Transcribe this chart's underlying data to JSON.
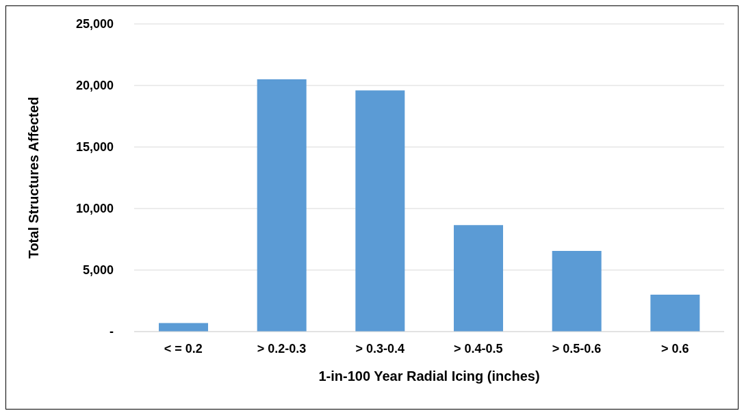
{
  "chart_data": {
    "type": "bar",
    "xlabel": "1-in-100 Year Radial Icing (inches)",
    "ylabel": "Total Structures Affected",
    "categories": [
      "< = 0.2",
      "> 0.2-0.3",
      "> 0.3-0.4",
      "> 0.4-0.5",
      "> 0.5-0.6",
      "> 0.6"
    ],
    "values": [
      700,
      20500,
      19600,
      8650,
      6550,
      3000
    ],
    "color": "#5b9bd5",
    "ylim": [
      0,
      25000
    ],
    "yticks": [
      {
        "value": 0,
        "label": "-"
      },
      {
        "value": 5000,
        "label": "5,000"
      },
      {
        "value": 10000,
        "label": "10,000"
      },
      {
        "value": 15000,
        "label": "15,000"
      },
      {
        "value": 20000,
        "label": "20,000"
      },
      {
        "value": 25000,
        "label": "25,000"
      }
    ],
    "grid": "y"
  }
}
